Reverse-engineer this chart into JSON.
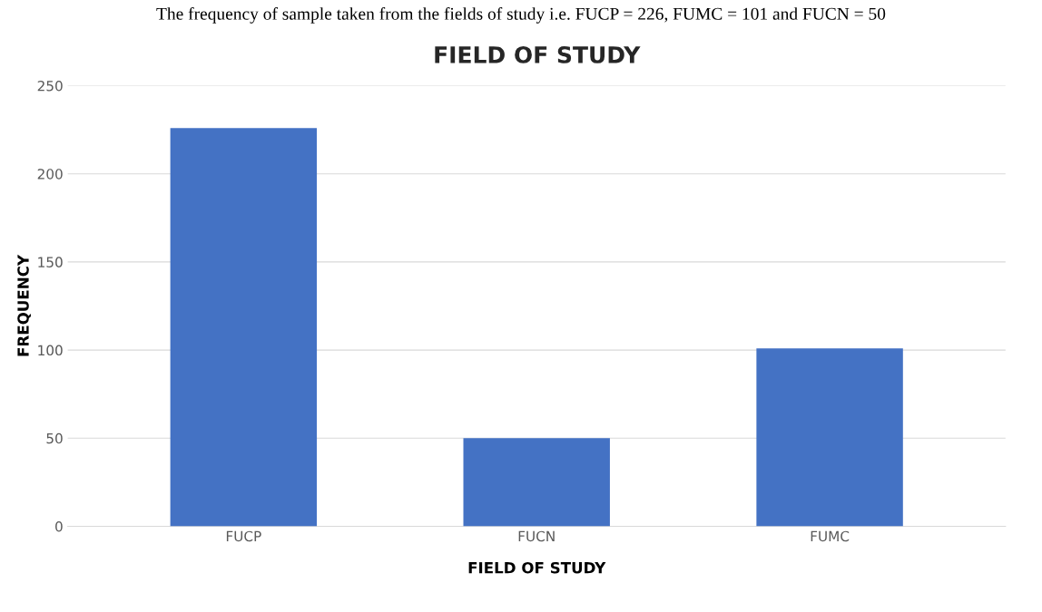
{
  "chart_data": {
    "type": "bar",
    "title": "FIELD OF STUDY",
    "xlabel": "FIELD OF STUDY",
    "ylabel": "FREQUENCY",
    "annotations": [
      "The frequency of sample taken from the fields of study i.e. FUCP = 226, FUMC = 101 and FUCN = 50"
    ],
    "categories": [
      "FUCP",
      "FUCN",
      "FUMC"
    ],
    "values": [
      226,
      50,
      101
    ],
    "color": "#4472c4",
    "ylim": [
      0,
      250
    ],
    "yticks": [
      0,
      50,
      100,
      150,
      200,
      250
    ],
    "grid": "y"
  }
}
